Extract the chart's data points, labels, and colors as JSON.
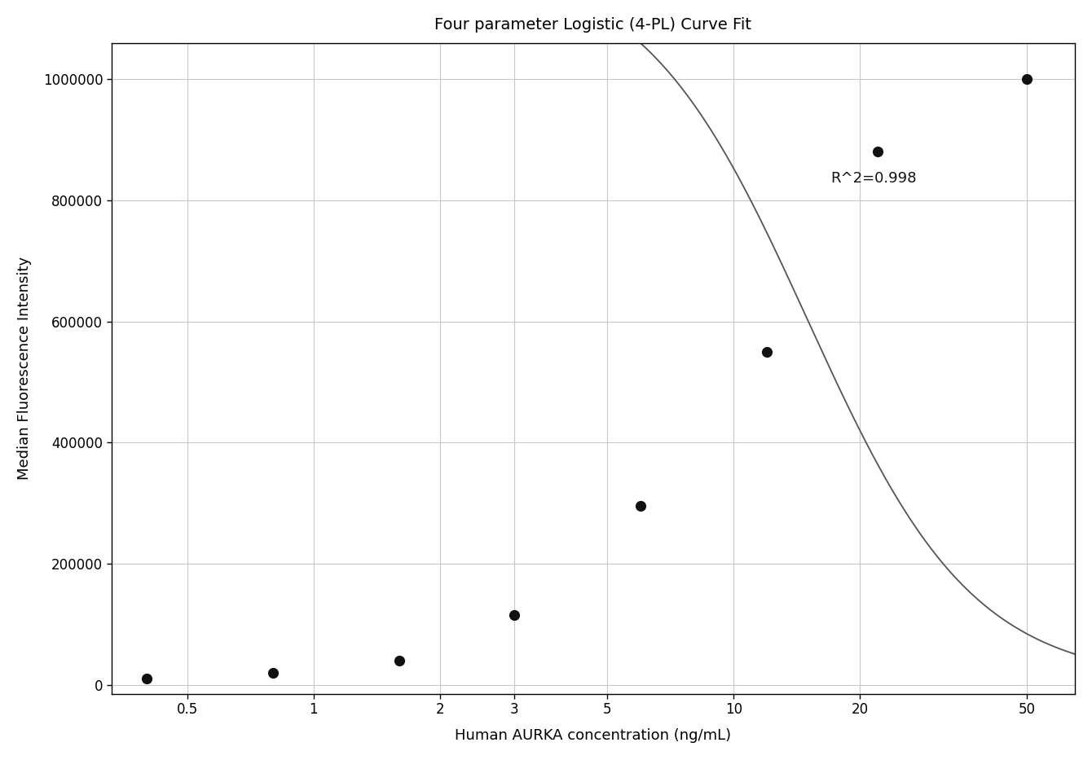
{
  "title": "Four parameter Logistic (4-PL) Curve Fit",
  "xlabel": "Human AURKA concentration (ng/mL)",
  "ylabel": "Median Fluorescence Intensity",
  "r_squared": "R^2=0.998",
  "data_x": [
    0.4,
    0.8,
    1.6,
    3.0,
    6.0,
    12.0,
    22.0,
    50.0
  ],
  "data_y": [
    10000,
    20000,
    40000,
    115000,
    295000,
    550000,
    880000,
    1000000
  ],
  "xlim_log": [
    0.33,
    65
  ],
  "ylim": [
    -15000,
    1060000
  ],
  "xticks": [
    0.5,
    1,
    2,
    3,
    5,
    10,
    20,
    50
  ],
  "xtick_labels": [
    "0.5",
    "1",
    "2",
    "3",
    "5",
    "10",
    "20",
    "50"
  ],
  "yticks": [
    0,
    200000,
    400000,
    600000,
    800000,
    1000000
  ],
  "ytick_labels": [
    "0",
    "200000",
    "400000",
    "600000",
    "800000",
    "1000000"
  ],
  "dot_color": "#111111",
  "line_color": "#555555",
  "grid_color": "#c8c8c8",
  "bg_color": "#ffffff",
  "title_fontsize": 14,
  "label_fontsize": 13,
  "tick_fontsize": 12,
  "annotation_fontsize": 13,
  "r2_x_data": 17,
  "r2_y_data": 830000,
  "4pl_A": 5000,
  "4pl_B": 2.2,
  "4pl_C": 15.0,
  "4pl_D": 1200000
}
